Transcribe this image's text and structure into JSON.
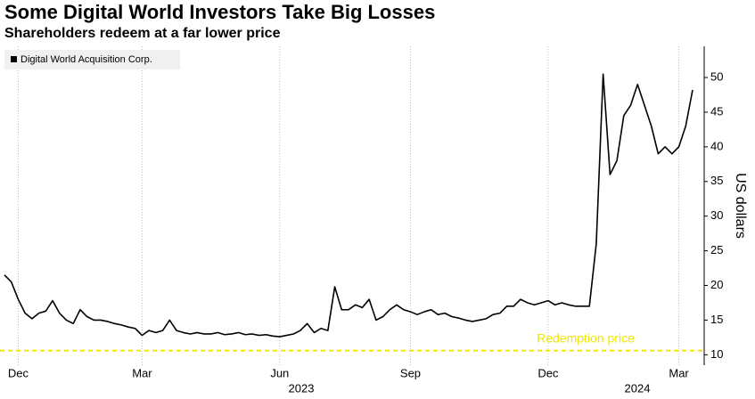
{
  "chart_data": {
    "type": "line",
    "title": "Some Digital World Investors Take Big Losses",
    "subtitle": "Shareholders redeem at a far lower price",
    "y_label": "US dollars",
    "categories": [
      null,
      null,
      "Dec",
      null,
      null,
      null,
      null,
      null,
      null,
      null,
      null,
      null,
      null,
      null,
      null,
      null,
      null,
      null,
      null,
      null,
      "Mar",
      null,
      null,
      null,
      null,
      null,
      null,
      null,
      null,
      null,
      null,
      null,
      null,
      null,
      null,
      null,
      null,
      null,
      null,
      null,
      "Jun",
      null,
      null,
      null,
      null,
      null,
      null,
      null,
      null,
      null,
      null,
      null,
      null,
      null,
      null,
      null,
      null,
      null,
      null,
      "Sep",
      null,
      null,
      null,
      null,
      null,
      null,
      null,
      null,
      null,
      null,
      null,
      null,
      null,
      null,
      null,
      null,
      null,
      null,
      null,
      "Dec",
      null,
      null,
      null,
      null,
      null,
      null,
      null,
      null,
      null,
      null,
      null,
      null,
      null,
      null,
      null,
      null,
      null,
      null,
      "Mar",
      null,
      null
    ],
    "year_labels": [
      "2023",
      "2024"
    ],
    "series": [
      {
        "name": "Digital World Acquisition Corp.",
        "color": "#000000",
        "values": [
          21.5,
          20.5,
          18,
          16,
          15.2,
          16,
          16.3,
          17.8,
          16,
          15,
          14.5,
          16.5,
          15.5,
          15,
          15,
          14.8,
          14.5,
          14.3,
          14,
          13.8,
          12.8,
          13.5,
          13.2,
          13.5,
          15,
          13.5,
          13.2,
          13,
          13.2,
          13,
          13,
          13.2,
          12.9,
          13,
          13.2,
          12.9,
          13,
          12.8,
          12.9,
          12.7,
          12.6,
          12.8,
          13,
          13.5,
          14.5,
          13.2,
          13.8,
          13.5,
          19.8,
          16.5,
          16.5,
          17.2,
          16.8,
          18,
          15,
          15.5,
          16.5,
          17.2,
          16.5,
          16.2,
          15.8,
          16.2,
          16.5,
          15.8,
          16,
          15.5,
          15.3,
          15,
          14.8,
          15,
          15.2,
          15.8,
          16,
          17,
          17,
          18,
          17.5,
          17.2,
          17.5,
          17.8,
          17.2,
          17.5,
          17.2,
          17,
          17,
          17,
          26,
          50.5,
          36,
          38,
          44.5,
          46,
          49,
          46,
          43,
          39,
          40,
          39,
          40,
          43,
          48.2
        ]
      }
    ],
    "reference_lines": [
      {
        "value": 10.6,
        "label": "Redemption price",
        "color": "#f2e600"
      }
    ],
    "ylim": [
      8.5,
      54.5
    ],
    "yticks": [
      10,
      15,
      20,
      25,
      30,
      35,
      40,
      45,
      50
    ],
    "grid": "x",
    "legend": "top-left"
  }
}
